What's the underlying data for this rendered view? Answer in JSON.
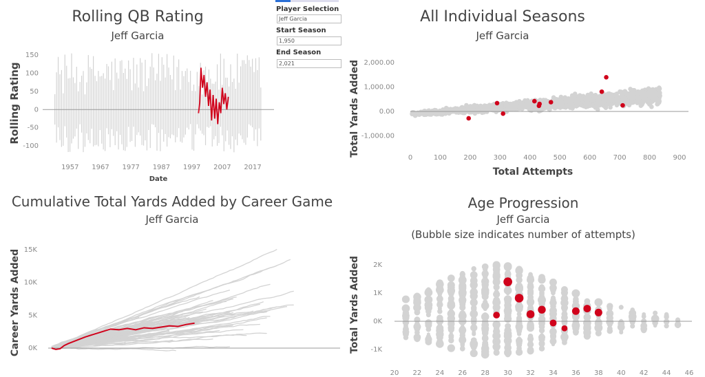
{
  "panels": {
    "rolling": {
      "title": "Rolling QB Rating",
      "subtitle": "Jeff Garcia"
    },
    "seasons": {
      "title": "All Individual Seasons",
      "subtitle": "Jeff Garcia"
    },
    "cumulative": {
      "title": "Cumulative Total Yards Added by Career Game",
      "subtitle": "Jeff Garcia"
    },
    "age": {
      "title": "Age Progression",
      "subtitle": "Jeff Garcia",
      "note": "(Bubble size indicates number of attempts)"
    }
  },
  "controls": {
    "player_label": "Player Selection",
    "player_value": "Jeff Garcia",
    "start_label": "Start Season",
    "start_value": "1,950",
    "end_label": "End Season",
    "end_value": "2,021"
  },
  "colors": {
    "highlight": "#d0021b",
    "background_marks": "#d3d3d3",
    "zero_line": "#999999"
  },
  "chart_data": [
    {
      "type": "line",
      "title": "Rolling QB Rating",
      "subtitle": "Jeff Garcia",
      "xlabel": "Date",
      "ylabel": "Rolling Rating",
      "x_ticks": [
        1957,
        1967,
        1977,
        1987,
        1997,
        2007,
        2017
      ],
      "y_ticks": [
        150,
        100,
        50,
        0,
        -50,
        -100
      ],
      "xlim": [
        1948,
        2024
      ],
      "ylim": [
        -130,
        165
      ],
      "series": [
        {
          "name": "Jeff Garcia",
          "x": [
            1999.2,
            1999.6,
            2000.0,
            2000.5,
            2001.0,
            2001.5,
            2002.0,
            2002.5,
            2003.0,
            2003.5,
            2004.0,
            2004.5,
            2005.0,
            2005.5,
            2006.0,
            2006.5,
            2007.0,
            2007.5,
            2008.0,
            2008.5,
            2009.0
          ],
          "y": [
            -10,
            20,
            115,
            60,
            95,
            35,
            75,
            10,
            55,
            -30,
            40,
            -25,
            30,
            -40,
            20,
            -10,
            60,
            15,
            45,
            0,
            35
          ]
        }
      ]
    },
    {
      "type": "scatter",
      "title": "All Individual Seasons",
      "subtitle": "Jeff Garcia",
      "xlabel": "Total Attempts",
      "ylabel": "Total Yards Added",
      "x_ticks": [
        0,
        100,
        200,
        300,
        400,
        500,
        600,
        700,
        800,
        900
      ],
      "y_ticks": [
        "2,000.00",
        "1,000.00",
        "0.00",
        "-1,000.00"
      ],
      "y_tick_values": [
        2000,
        1000,
        0,
        -1000
      ],
      "xlim": [
        -10,
        880
      ],
      "ylim": [
        -1250,
        2500
      ],
      "series": [
        {
          "name": "Jeff Garcia",
          "x": [
            195,
            290,
            310,
            415,
            430,
            432,
            470,
            640,
            655,
            710
          ],
          "y": [
            -280,
            340,
            -90,
            420,
            230,
            310,
            380,
            810,
            1400,
            250
          ]
        }
      ]
    },
    {
      "type": "line",
      "title": "Cumulative Total Yards Added by Career Game",
      "subtitle": "Jeff Garcia",
      "xlabel": "",
      "ylabel": "Career Yards Added",
      "y_ticks": [
        "15K",
        "10K",
        "5K",
        "0K"
      ],
      "y_tick_values": [
        15000,
        10000,
        5000,
        0
      ],
      "xlim": [
        0,
        330
      ],
      "ylim": [
        -3500,
        17000
      ],
      "series": [
        {
          "name": "Jeff Garcia",
          "x": [
            0,
            5,
            10,
            15,
            20,
            30,
            40,
            50,
            60,
            70,
            80,
            90,
            100,
            110,
            120,
            130,
            140,
            150,
            160,
            170
          ],
          "y": [
            0,
            -200,
            -100,
            400,
            700,
            1200,
            1700,
            2100,
            2500,
            2900,
            2800,
            3000,
            2800,
            3100,
            3000,
            3200,
            3400,
            3300,
            3600,
            3800
          ]
        }
      ]
    },
    {
      "type": "scatter",
      "title": "Age Progression",
      "subtitle": "Jeff Garcia",
      "note": "(Bubble size indicates number of attempts)",
      "xlabel": "",
      "ylabel": "Total Yards Added",
      "x_ticks": [
        20,
        22,
        24,
        26,
        28,
        30,
        32,
        34,
        36,
        38,
        40,
        42,
        44,
        46
      ],
      "y_ticks": [
        "2K",
        "1K",
        "0K",
        "-1K"
      ],
      "y_tick_values": [
        2000,
        1000,
        0,
        -1000
      ],
      "xlim": [
        19.5,
        46.8
      ],
      "ylim": [
        -1800,
        2700
      ],
      "series": [
        {
          "name": "Jeff Garcia",
          "x": [
            29,
            30,
            31,
            32,
            33,
            34,
            35,
            36,
            37,
            38
          ],
          "y": [
            220,
            1400,
            820,
            250,
            410,
            -60,
            -250,
            360,
            450,
            310
          ],
          "attempts": [
            290,
            655,
            640,
            500,
            470,
            310,
            195,
            430,
            415,
            432
          ]
        }
      ]
    }
  ]
}
